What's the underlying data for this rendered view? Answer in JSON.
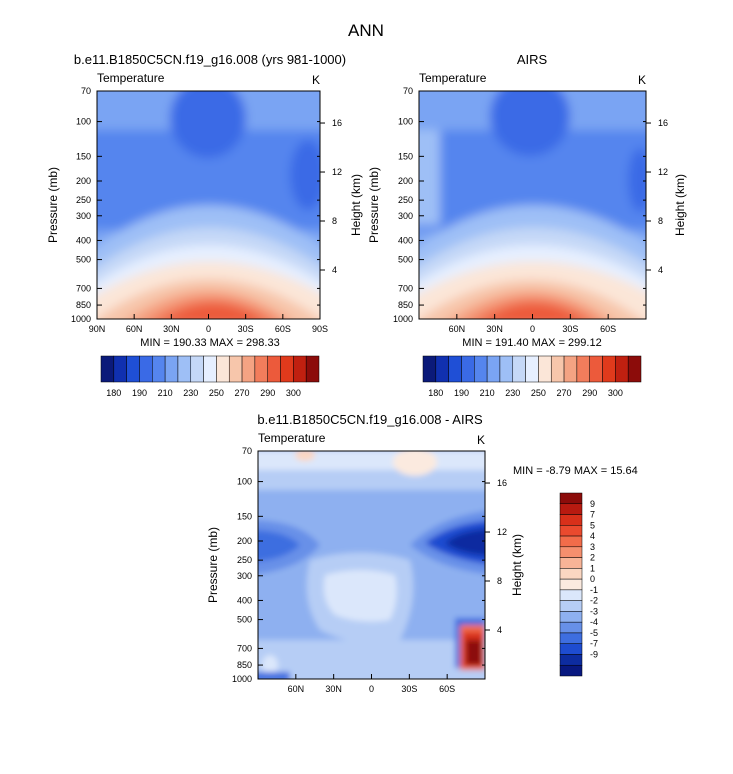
{
  "page_title": "ANN",
  "chart_data": [
    {
      "id": "model",
      "type": "heatmap",
      "title": "b.e11.B1850C5CN.f19_g16.008 (yrs 981-1000)",
      "subtitle_left": "Temperature",
      "subtitle_right": "K",
      "ylabel": "Pressure (mb)",
      "ylabel_right": "Height (km)",
      "y_ticks": [
        "70",
        "100",
        "150",
        "200",
        "250",
        "300",
        "400",
        "500",
        "700",
        "850",
        "1000"
      ],
      "x_ticks": [
        "90N",
        "60N",
        "30N",
        "0",
        "30S",
        "60S",
        "90S"
      ],
      "height_ticks": [
        "16",
        "12",
        "8",
        "4"
      ],
      "min_max": "MIN = 190.33   MAX = 298.33",
      "min": 190.33,
      "max": 298.33
    },
    {
      "id": "obs",
      "type": "heatmap",
      "title": "AIRS",
      "subtitle_left": "Temperature",
      "subtitle_right": "K",
      "ylabel": "Pressure (mb)",
      "ylabel_right": "Height (km)",
      "y_ticks": [
        "70",
        "100",
        "150",
        "200",
        "250",
        "300",
        "400",
        "500",
        "700",
        "850",
        "1000"
      ],
      "x_ticks": [
        "60N",
        "30N",
        "0",
        "30S",
        "60S"
      ],
      "height_ticks": [
        "16",
        "12",
        "8",
        "4"
      ],
      "min_max": "MIN = 191.40   MAX = 299.12",
      "min": 191.4,
      "max": 299.12
    },
    {
      "id": "diff",
      "type": "heatmap",
      "title": "b.e11.B1850C5CN.f19_g16.008 - AIRS",
      "subtitle_left": "Temperature",
      "subtitle_right": "K",
      "ylabel": "Pressure (mb)",
      "ylabel_right": "Height (km)",
      "y_ticks": [
        "70",
        "100",
        "150",
        "200",
        "250",
        "300",
        "400",
        "500",
        "700",
        "850",
        "1000"
      ],
      "x_ticks": [
        "60N",
        "30N",
        "0",
        "30S",
        "60S"
      ],
      "height_ticks": [
        "16",
        "12",
        "8",
        "4"
      ],
      "min_max": "MIN = -8.79   MAX = 15.64",
      "min": -8.79,
      "max": 15.64
    }
  ],
  "colorbar_abs": {
    "labels": [
      "180",
      "190",
      "210",
      "230",
      "250",
      "270",
      "290",
      "300"
    ],
    "colors": [
      "#0b1a7a",
      "#1030b0",
      "#1f4fd6",
      "#3a6ae6",
      "#5585ee",
      "#7aa4f3",
      "#9ebff6",
      "#c5d8f7",
      "#e6efff",
      "#fbe6d8",
      "#f7c6ab",
      "#f4a383",
      "#f27d5c",
      "#ec5a3b",
      "#e03a1c",
      "#c02010",
      "#8c0c0a"
    ]
  },
  "colorbar_diff": {
    "labels": [
      "9",
      "7",
      "5",
      "4",
      "3",
      "2",
      "1",
      "0",
      "-1",
      "-2",
      "-3",
      "-4",
      "-5",
      "-7",
      "-9"
    ],
    "colors": [
      "#8c0c0a",
      "#b81a10",
      "#d8301a",
      "#ea4a2e",
      "#f26c4a",
      "#f58f6e",
      "#f8b497",
      "#fbd7c2",
      "#fbeadf",
      "#dbe7fb",
      "#b6cdf5",
      "#8eb0f0",
      "#6790e8",
      "#3e6ee0",
      "#1e4cd0",
      "#0d2ca0",
      "#081880"
    ]
  },
  "palette": {
    "deep_blue": "#1c3fd1",
    "mid_blue": "#5a88ec",
    "light_blue": "#a9c6f5",
    "pale": "#f7f0ec",
    "orange": "#f38a63",
    "red": "#e0401c",
    "dark_red": "#8c0c0a"
  }
}
